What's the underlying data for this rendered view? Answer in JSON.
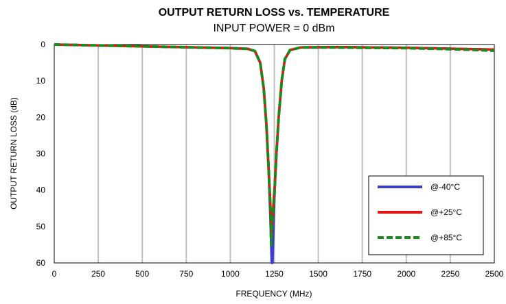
{
  "chart_data": {
    "type": "line",
    "title": "OUTPUT RETURN LOSS vs. TEMPERATURE",
    "subtitle": "INPUT POWER = 0 dBm",
    "xlabel": "FREQUENCY (MHz)",
    "ylabel": "OUTPUT RETURN LOSS (dB)",
    "xlim": [
      0,
      2500
    ],
    "ylim": [
      0,
      60
    ],
    "y_inverted": true,
    "x_ticks": [
      0,
      250,
      500,
      750,
      1000,
      1250,
      1500,
      1750,
      2000,
      2250,
      2500
    ],
    "y_ticks": [
      0,
      10,
      20,
      30,
      40,
      50,
      60
    ],
    "grid": "vertical",
    "legend_position": "bottom-right",
    "series": [
      {
        "name": "@-40°C",
        "color": "#3c3cd2",
        "dash": "solid",
        "points": [
          [
            0,
            0
          ],
          [
            200,
            0.2
          ],
          [
            400,
            0.4
          ],
          [
            600,
            0.6
          ],
          [
            800,
            0.8
          ],
          [
            1000,
            1.0
          ],
          [
            1100,
            1.2
          ],
          [
            1140,
            1.8
          ],
          [
            1170,
            5
          ],
          [
            1190,
            12
          ],
          [
            1205,
            22
          ],
          [
            1218,
            35
          ],
          [
            1228,
            48
          ],
          [
            1235,
            60
          ],
          [
            1240,
            60
          ],
          [
            1246,
            50
          ],
          [
            1252,
            40
          ],
          [
            1262,
            30
          ],
          [
            1275,
            20
          ],
          [
            1292,
            10
          ],
          [
            1310,
            4
          ],
          [
            1340,
            1.5
          ],
          [
            1400,
            0.8
          ],
          [
            1600,
            0.7
          ],
          [
            1800,
            0.8
          ],
          [
            2000,
            0.9
          ],
          [
            2200,
            1.1
          ],
          [
            2400,
            1.3
          ],
          [
            2500,
            1.4
          ]
        ]
      },
      {
        "name": "@+25°C",
        "color": "#e81414",
        "dash": "solid",
        "points": [
          [
            0,
            0
          ],
          [
            200,
            0.2
          ],
          [
            400,
            0.4
          ],
          [
            600,
            0.6
          ],
          [
            800,
            0.8
          ],
          [
            1000,
            1.0
          ],
          [
            1100,
            1.2
          ],
          [
            1140,
            1.8
          ],
          [
            1170,
            5
          ],
          [
            1190,
            12
          ],
          [
            1205,
            22
          ],
          [
            1218,
            34
          ],
          [
            1228,
            44
          ],
          [
            1235,
            52
          ],
          [
            1240,
            48
          ],
          [
            1246,
            43
          ],
          [
            1252,
            39
          ],
          [
            1262,
            30
          ],
          [
            1275,
            20
          ],
          [
            1292,
            10
          ],
          [
            1310,
            4
          ],
          [
            1340,
            1.5
          ],
          [
            1400,
            0.8
          ],
          [
            1600,
            0.7
          ],
          [
            1800,
            0.8
          ],
          [
            2000,
            0.9
          ],
          [
            2200,
            1.1
          ],
          [
            2400,
            1.3
          ],
          [
            2500,
            1.4
          ]
        ]
      },
      {
        "name": "@+85°C",
        "color": "#1a8a1a",
        "dash": "dashed",
        "points": [
          [
            0,
            0
          ],
          [
            200,
            0.2
          ],
          [
            400,
            0.4
          ],
          [
            600,
            0.6
          ],
          [
            800,
            0.8
          ],
          [
            1000,
            1.0
          ],
          [
            1100,
            1.2
          ],
          [
            1140,
            1.8
          ],
          [
            1170,
            5
          ],
          [
            1190,
            12
          ],
          [
            1205,
            22
          ],
          [
            1218,
            34
          ],
          [
            1228,
            46
          ],
          [
            1233,
            55
          ],
          [
            1238,
            50
          ],
          [
            1244,
            46
          ],
          [
            1250,
            42
          ],
          [
            1262,
            30
          ],
          [
            1275,
            20
          ],
          [
            1292,
            10
          ],
          [
            1310,
            4
          ],
          [
            1340,
            1.5
          ],
          [
            1400,
            0.8
          ],
          [
            1600,
            0.8
          ],
          [
            1800,
            0.9
          ],
          [
            2000,
            1.0
          ],
          [
            2200,
            1.2
          ],
          [
            2400,
            1.5
          ],
          [
            2500,
            1.7
          ]
        ]
      }
    ]
  }
}
